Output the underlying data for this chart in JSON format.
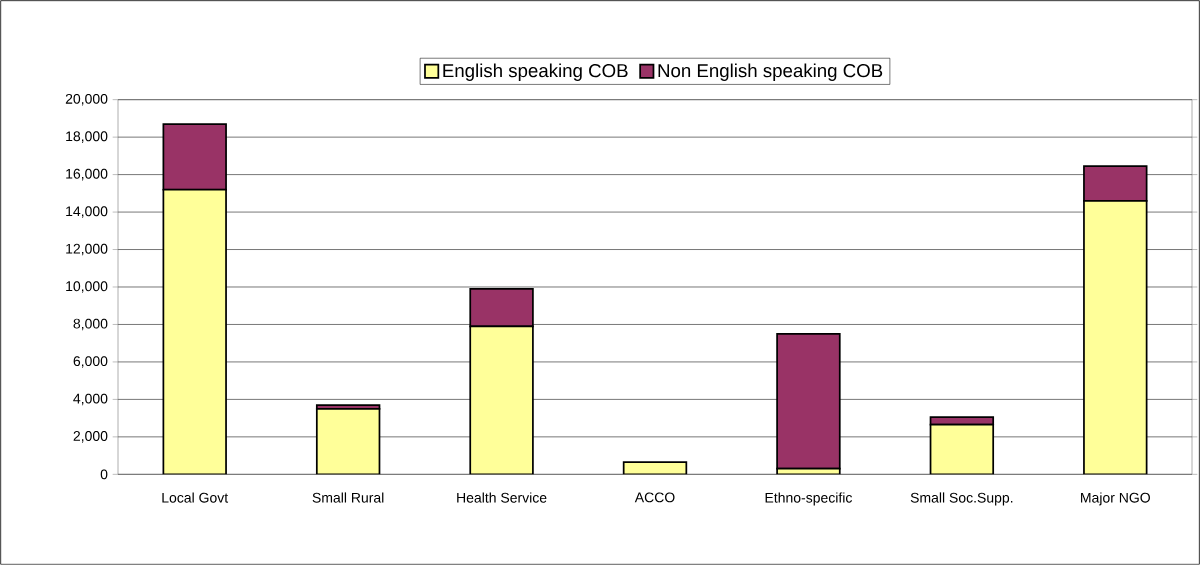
{
  "chart_data": {
    "type": "bar",
    "stacked": true,
    "categories": [
      "Local Govt",
      "Small Rural",
      "Health Service",
      "ACCO",
      "Ethno-specific",
      "Small Soc.Supp.",
      "Major NGO"
    ],
    "series": [
      {
        "name": "English speaking COB",
        "color": "#ffff99",
        "values": [
          15200,
          3500,
          7900,
          650,
          300,
          2650,
          14600
        ]
      },
      {
        "name": "Non English speaking COB",
        "color": "#993366",
        "values": [
          3500,
          200,
          2000,
          0,
          7200,
          400,
          1850
        ]
      }
    ],
    "ylim": [
      0,
      20000
    ],
    "yticks": [
      {
        "value": 0,
        "label": "0"
      },
      {
        "value": 2000,
        "label": "2,000"
      },
      {
        "value": 4000,
        "label": "4,000"
      },
      {
        "value": 6000,
        "label": "6,000"
      },
      {
        "value": 8000,
        "label": "8,000"
      },
      {
        "value": 10000,
        "label": "10,000"
      },
      {
        "value": 12000,
        "label": "12,000"
      },
      {
        "value": 14000,
        "label": "14,000"
      },
      {
        "value": 16000,
        "label": "16,000"
      },
      {
        "value": 18000,
        "label": "18,000"
      },
      {
        "value": 20000,
        "label": "20,000"
      }
    ],
    "grid": "y",
    "legend": "top"
  }
}
